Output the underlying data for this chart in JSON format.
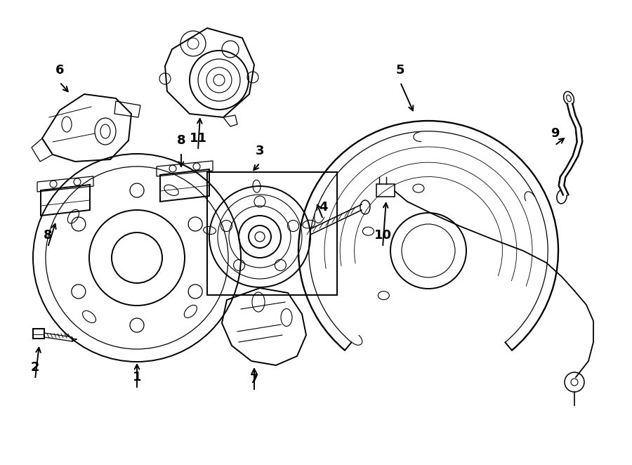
{
  "background_color": "#ffffff",
  "line_color": "#000000",
  "fig_width": 9.0,
  "fig_height": 6.62,
  "dpi": 100
}
